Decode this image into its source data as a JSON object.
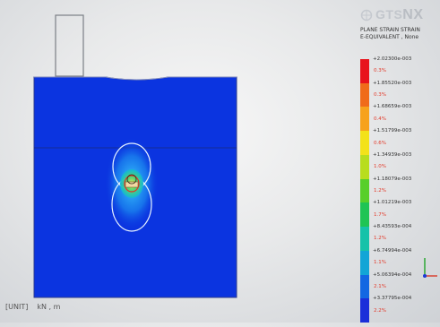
{
  "app": {
    "logo_text": "GTS",
    "logo_text_suffix": "NX"
  },
  "legend": {
    "title_line1": "PLANE STRAIN STRAIN",
    "title_line2": "E-EQUIVALENT , None",
    "values": [
      "+2.02300e-003",
      "+1.85520e-003",
      "+1.68659e-003",
      "+1.51799e-003",
      "+1.34939e-003",
      "+1.18079e-003",
      "+1.01219e-003",
      "+8.43593e-004",
      "+6.74994e-004",
      "+5.06394e-004",
      "+3.37795e-004"
    ],
    "percents": [
      "0.3%",
      "0.3%",
      "0.4%",
      "0.6%",
      "1.0%",
      "1.2%",
      "1.7%",
      "1.2%",
      "1.1%",
      "2.1%",
      "2.2%"
    ],
    "colors": [
      "#e8131c",
      "#f06b1a",
      "#f7a21c",
      "#f3e21a",
      "#b8dd1e",
      "#58cf2a",
      "#1fc454",
      "#16c2a9",
      "#12a5d6",
      "#1367e2",
      "#1b2fd9"
    ]
  },
  "status": {
    "label": "[UNIT]",
    "unit": "kN , m"
  },
  "viewport": {
    "mesh_color": "#0b34e0",
    "mesh_border_color": "#2c3b8c"
  }
}
